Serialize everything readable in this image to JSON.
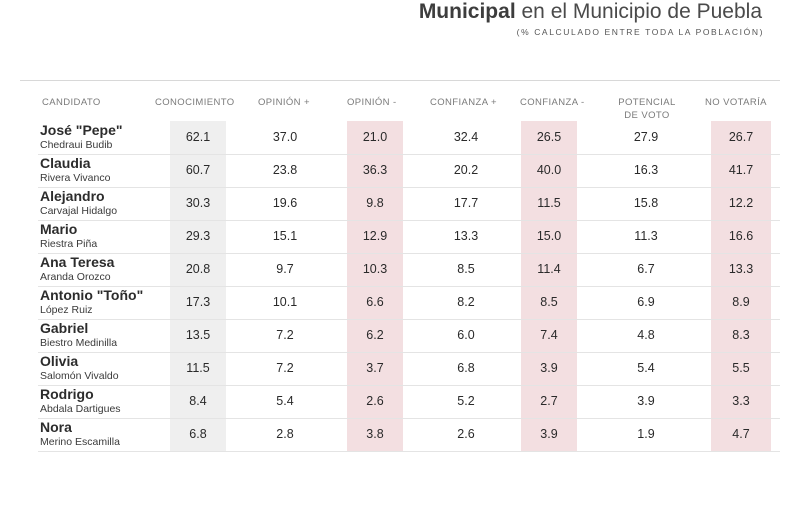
{
  "header": {
    "title_bold": "Municipal",
    "title_rest": "en el Municipio de Puebla",
    "subtitle": "(% CALCULADO ENTRE TODA LA POBLACIÓN)"
  },
  "table": {
    "columns": [
      "CANDIDATO",
      "CONOCIMIENTO",
      "OPINIÓN +",
      "OPINIÓN -",
      "CONFIANZA +",
      "CONFIANZA -",
      "POTENCIAL DE VOTO",
      "NO VOTARÍA"
    ],
    "rows": [
      {
        "first": "José \"Pepe\"",
        "last": "Chedraui Budib",
        "values": [
          "62.1",
          "37.0",
          "21.0",
          "32.4",
          "26.5",
          "27.9",
          "26.7"
        ]
      },
      {
        "first": "Claudia",
        "last": "Rivera Vivanco",
        "values": [
          "60.7",
          "23.8",
          "36.3",
          "20.2",
          "40.0",
          "16.3",
          "41.7"
        ]
      },
      {
        "first": "Alejandro",
        "last": "Carvajal Hidalgo",
        "values": [
          "30.3",
          "19.6",
          "9.8",
          "17.7",
          "11.5",
          "15.8",
          "12.2"
        ]
      },
      {
        "first": "Mario",
        "last": "Riestra Piña",
        "values": [
          "29.3",
          "15.1",
          "12.9",
          "13.3",
          "15.0",
          "11.3",
          "16.6"
        ]
      },
      {
        "first": "Ana Teresa",
        "last": "Aranda Orozco",
        "values": [
          "20.8",
          "9.7",
          "10.3",
          "8.5",
          "11.4",
          "6.7",
          "13.3"
        ]
      },
      {
        "first": "Antonio \"Toño\"",
        "last": "López Ruiz",
        "values": [
          "17.3",
          "10.1",
          "6.6",
          "8.2",
          "8.5",
          "6.9",
          "8.9"
        ]
      },
      {
        "first": "Gabriel",
        "last": "Biestro Medinilla",
        "values": [
          "13.5",
          "7.2",
          "6.2",
          "6.0",
          "7.4",
          "4.8",
          "8.3"
        ]
      },
      {
        "first": "Olivia",
        "last": "Salomón Vivaldo",
        "values": [
          "11.5",
          "7.2",
          "3.7",
          "6.8",
          "3.9",
          "5.4",
          "5.5"
        ]
      },
      {
        "first": "Rodrigo",
        "last": "Abdala Dartigues",
        "values": [
          "8.4",
          "5.4",
          "2.6",
          "5.2",
          "2.7",
          "3.9",
          "3.3"
        ]
      },
      {
        "first": "Nora",
        "last": "Merino Escamilla",
        "values": [
          "6.8",
          "2.8",
          "3.8",
          "2.6",
          "3.9",
          "1.9",
          "4.7"
        ]
      }
    ]
  },
  "colors": {
    "gray_column": "#efefef",
    "pink_column": "#f3dfe1"
  }
}
